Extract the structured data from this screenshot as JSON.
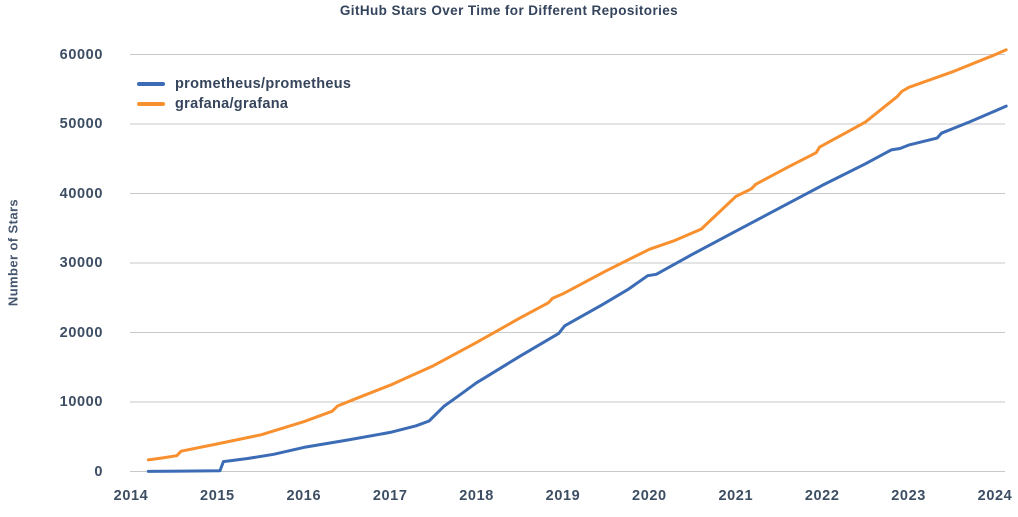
{
  "chart": {
    "title": "GitHub Stars Over Time for Different Repositories",
    "ylabel": "Number of Stars"
  },
  "chart_data": {
    "type": "line",
    "title": "GitHub Stars Over Time for Different Repositories",
    "xlabel": "",
    "ylabel": "Number of Stars",
    "xlim": [
      2014,
      2024.2
    ],
    "ylim": [
      0,
      60000
    ],
    "x_ticks": [
      2014,
      2015,
      2016,
      2017,
      2018,
      2019,
      2020,
      2021,
      2022,
      2023,
      2024
    ],
    "y_ticks": [
      0,
      10000,
      20000,
      30000,
      40000,
      50000,
      60000
    ],
    "grid": "horizontal",
    "legend_position": "top-left-inside",
    "grid_color": "#c9c9c9",
    "text_color": "#3d4e64",
    "series": [
      {
        "name": "prometheus/prometheus",
        "color": "#3c6cb5",
        "points": [
          [
            2014.2,
            50
          ],
          [
            2014.6,
            90
          ],
          [
            2015.03,
            140
          ],
          [
            2015.07,
            1450
          ],
          [
            2015.35,
            1900
          ],
          [
            2015.65,
            2500
          ],
          [
            2016.0,
            3500
          ],
          [
            2016.5,
            4550
          ],
          [
            2017.0,
            5650
          ],
          [
            2017.3,
            6600
          ],
          [
            2017.45,
            7300
          ],
          [
            2017.62,
            9400
          ],
          [
            2017.8,
            11000
          ],
          [
            2018.0,
            12800
          ],
          [
            2018.08,
            13400
          ],
          [
            2018.5,
            16600
          ],
          [
            2018.95,
            19900
          ],
          [
            2019.02,
            21000
          ],
          [
            2019.45,
            24000
          ],
          [
            2019.75,
            26200
          ],
          [
            2019.98,
            28200
          ],
          [
            2020.08,
            28400
          ],
          [
            2020.5,
            31300
          ],
          [
            2021.0,
            34600
          ],
          [
            2021.5,
            37900
          ],
          [
            2022.0,
            41200
          ],
          [
            2022.5,
            44300
          ],
          [
            2022.8,
            46300
          ],
          [
            2022.9,
            46500
          ],
          [
            2023.0,
            47000
          ],
          [
            2023.33,
            48000
          ],
          [
            2023.38,
            48700
          ],
          [
            2023.7,
            50300
          ],
          [
            2024.0,
            51900
          ],
          [
            2024.13,
            52600
          ]
        ]
      },
      {
        "name": "grafana/grafana",
        "color": "#f8902f",
        "points": [
          [
            2014.2,
            1700
          ],
          [
            2014.35,
            1950
          ],
          [
            2014.53,
            2300
          ],
          [
            2014.58,
            2950
          ],
          [
            2015.0,
            4000
          ],
          [
            2015.5,
            5300
          ],
          [
            2016.0,
            7200
          ],
          [
            2016.33,
            8700
          ],
          [
            2016.39,
            9450
          ],
          [
            2016.7,
            11000
          ],
          [
            2017.0,
            12450
          ],
          [
            2017.5,
            15250
          ],
          [
            2018.0,
            18600
          ],
          [
            2018.5,
            22100
          ],
          [
            2018.83,
            24300
          ],
          [
            2018.88,
            24950
          ],
          [
            2019.0,
            25600
          ],
          [
            2019.5,
            28900
          ],
          [
            2020.0,
            32000
          ],
          [
            2020.3,
            33300
          ],
          [
            2020.6,
            34900
          ],
          [
            2021.0,
            39600
          ],
          [
            2021.18,
            40700
          ],
          [
            2021.23,
            41350
          ],
          [
            2021.6,
            43800
          ],
          [
            2021.93,
            45900
          ],
          [
            2021.97,
            46700
          ],
          [
            2022.5,
            50300
          ],
          [
            2022.87,
            54000
          ],
          [
            2022.92,
            54700
          ],
          [
            2023.0,
            55300
          ],
          [
            2023.5,
            57500
          ],
          [
            2024.0,
            60000
          ],
          [
            2024.13,
            60700
          ]
        ]
      }
    ]
  }
}
